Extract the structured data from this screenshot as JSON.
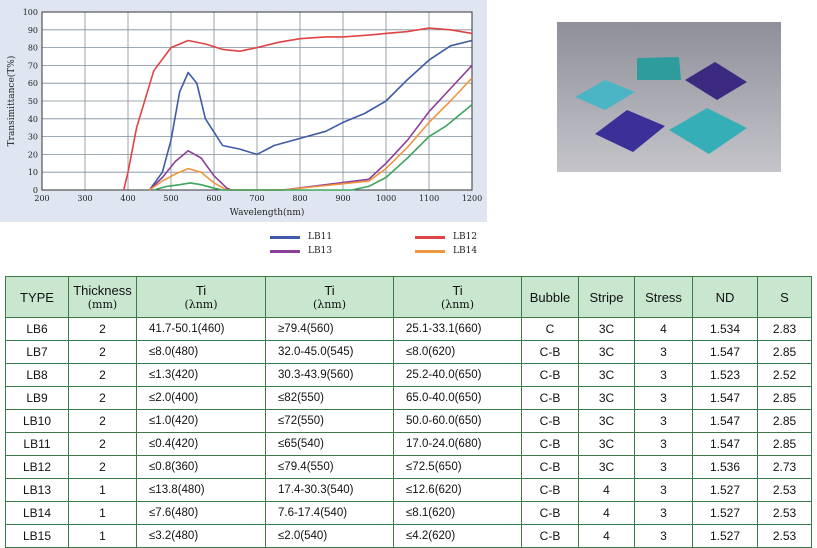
{
  "chart_data": {
    "type": "line",
    "xlabel": "Wavelength(nm)",
    "ylabel": "Transimittance(T%)",
    "xlim": [
      200,
      1200
    ],
    "ylim": [
      0,
      100
    ],
    "xticks": [
      "200",
      "300",
      "400",
      "500",
      "600",
      "700",
      "800",
      "900",
      "1000",
      "1100",
      "1200"
    ],
    "yticks": [
      "0",
      "10",
      "20",
      "30",
      "40",
      "50",
      "60",
      "70",
      "80",
      "90",
      "100"
    ],
    "grid": true,
    "legend_position": "bottom",
    "series": [
      {
        "name": "LB11",
        "color": "#3f5aa6",
        "points": [
          [
            450,
            0
          ],
          [
            480,
            10
          ],
          [
            500,
            28
          ],
          [
            520,
            55
          ],
          [
            540,
            66
          ],
          [
            560,
            60
          ],
          [
            580,
            40
          ],
          [
            620,
            25
          ],
          [
            660,
            23
          ],
          [
            700,
            20
          ],
          [
            740,
            25
          ],
          [
            800,
            29
          ],
          [
            860,
            33
          ],
          [
            900,
            38
          ],
          [
            950,
            43
          ],
          [
            1000,
            50
          ],
          [
            1050,
            62
          ],
          [
            1100,
            73
          ],
          [
            1150,
            81
          ],
          [
            1200,
            84
          ]
        ]
      },
      {
        "name": "LB12",
        "color": "#e04343",
        "points": [
          [
            390,
            0
          ],
          [
            400,
            10
          ],
          [
            420,
            35
          ],
          [
            460,
            67
          ],
          [
            500,
            80
          ],
          [
            540,
            84
          ],
          [
            580,
            82
          ],
          [
            620,
            79
          ],
          [
            660,
            78
          ],
          [
            700,
            80
          ],
          [
            750,
            83
          ],
          [
            800,
            85
          ],
          [
            860,
            86
          ],
          [
            900,
            86
          ],
          [
            960,
            87
          ],
          [
            1000,
            88
          ],
          [
            1050,
            89
          ],
          [
            1100,
            91
          ],
          [
            1150,
            90
          ],
          [
            1200,
            88
          ]
        ]
      },
      {
        "name": "LB13",
        "color": "#8c3f99",
        "points": [
          [
            450,
            0
          ],
          [
            480,
            7
          ],
          [
            510,
            16
          ],
          [
            540,
            22
          ],
          [
            570,
            18
          ],
          [
            600,
            8
          ],
          [
            630,
            1
          ],
          [
            640,
            0
          ],
          [
            760,
            0
          ],
          [
            960,
            6
          ],
          [
            1000,
            15
          ],
          [
            1050,
            28
          ],
          [
            1100,
            44
          ],
          [
            1150,
            57
          ],
          [
            1200,
            70
          ]
        ]
      },
      {
        "name": "LB14",
        "color": "#ee9640",
        "points": [
          [
            450,
            0
          ],
          [
            480,
            5
          ],
          [
            510,
            9
          ],
          [
            540,
            12
          ],
          [
            570,
            10
          ],
          [
            600,
            4
          ],
          [
            630,
            0
          ],
          [
            760,
            0
          ],
          [
            960,
            5
          ],
          [
            1000,
            12
          ],
          [
            1050,
            24
          ],
          [
            1100,
            38
          ],
          [
            1150,
            50
          ],
          [
            1200,
            63
          ]
        ]
      },
      {
        "name": "",
        "color": "#3fa55e",
        "points": [
          [
            460,
            0
          ],
          [
            490,
            2
          ],
          [
            520,
            3
          ],
          [
            545,
            4
          ],
          [
            570,
            3
          ],
          [
            600,
            1
          ],
          [
            620,
            0
          ],
          [
            920,
            0
          ],
          [
            960,
            2
          ],
          [
            1000,
            7
          ],
          [
            1050,
            18
          ],
          [
            1100,
            30
          ],
          [
            1140,
            36
          ],
          [
            1200,
            48
          ]
        ]
      }
    ]
  },
  "legend": [
    {
      "label": "LB11",
      "color": "#3f5aa6"
    },
    {
      "label": "LB12",
      "color": "#e04343"
    },
    {
      "label": "LB13",
      "color": "#8c3f99"
    },
    {
      "label": "LB14",
      "color": "#ee9640"
    }
  ],
  "photo": {
    "filters": [
      {
        "name": "teal-light",
        "color": "#4bb5c6"
      },
      {
        "name": "teal-dark",
        "color": "#2e9c9c"
      },
      {
        "name": "indigo",
        "color": "#3b2f98"
      },
      {
        "name": "violet",
        "color": "#3c2a80"
      },
      {
        "name": "cyan",
        "color": "#36aeb8"
      }
    ]
  },
  "table": {
    "headers": [
      {
        "main": "TYPE"
      },
      {
        "main": "Thickness",
        "sub": "(mm)"
      },
      {
        "main": "Ti",
        "sub": "(λnm)"
      },
      {
        "main": "Ti",
        "sub": "(λnm)"
      },
      {
        "main": "Ti",
        "sub": "(λnm)"
      },
      {
        "main": "Bubble"
      },
      {
        "main": "Stripe"
      },
      {
        "main": "Stress"
      },
      {
        "main": "ND"
      },
      {
        "main": "S"
      }
    ],
    "rows": [
      [
        "LB6",
        "2",
        "41.7-50.1(460)",
        "≥79.4(560)",
        "25.1-33.1(660)",
        "C",
        "3C",
        "4",
        "1.534",
        "2.83"
      ],
      [
        "LB7",
        "2",
        "≤8.0(480)",
        "32.0-45.0(545)",
        "≤8.0(620)",
        "C-B",
        "3C",
        "3",
        "1.547",
        "2.85"
      ],
      [
        "LB8",
        "2",
        "≤1.3(420)",
        "30.3-43.9(560)",
        "25.2-40.0(650)",
        "C-B",
        "3C",
        "3",
        "1.523",
        "2.52"
      ],
      [
        "LB9",
        "2",
        "≤2.0(400)",
        "≤82(550)",
        "65.0-40.0(650)",
        "C-B",
        "3C",
        "3",
        "1.547",
        "2.85"
      ],
      [
        "LB10",
        "2",
        "≤1.0(420)",
        "≤72(550)",
        "50.0-60.0(650)",
        "C-B",
        "3C",
        "3",
        "1.547",
        "2.85"
      ],
      [
        "LB11",
        "2",
        "≤0.4(420)",
        "≤65(540)",
        "17.0-24.0(680)",
        "C-B",
        "3C",
        "3",
        "1.547",
        "2.85"
      ],
      [
        "LB12",
        "2",
        "≤0.8(360)",
        "≤79.4(550)",
        "≤72.5(650)",
        "C-B",
        "3C",
        "3",
        "1.536",
        "2.73"
      ],
      [
        "LB13",
        "1",
        "≤13.8(480)",
        "17.4-30.3(540)",
        "≤12.6(620)",
        "C-B",
        "4",
        "3",
        "1.527",
        "2.53"
      ],
      [
        "LB14",
        "1",
        "≤7.6(480)",
        "7.6-17.4(540)",
        "≤8.1(620)",
        "C-B",
        "4",
        "3",
        "1.527",
        "2.53"
      ],
      [
        "LB15",
        "1",
        "≤3.2(480)",
        "≤2.0(540)",
        "≤4.2(620)",
        "C-B",
        "4",
        "3",
        "1.527",
        "2.53"
      ]
    ]
  }
}
